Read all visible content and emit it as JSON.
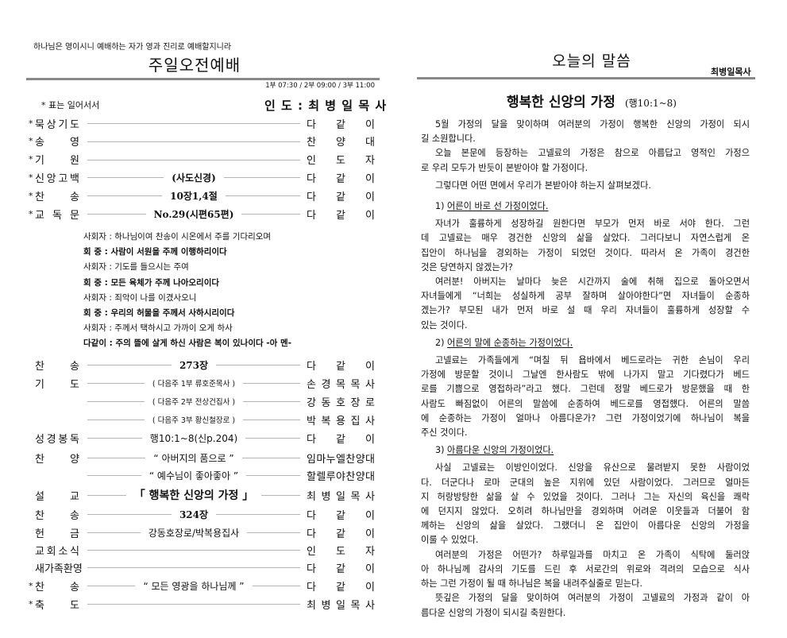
{
  "left": {
    "motto": "하나님은 영이시니 예배하는 자가 영과 진리로 예배할지니라",
    "title": "주일오전예배",
    "times": "1부 07:30  /  2부 09:00  / 3부 11:00",
    "note": "* 표는 일어서서",
    "leader": "인 도 : 최 병 일 목 사",
    "order1": [
      {
        "star": "*",
        "label": "묵상기도",
        "mid": "",
        "who": "다같이"
      },
      {
        "star": "*",
        "label": "송영",
        "mid": "",
        "who": "찬양대"
      },
      {
        "star": "*",
        "label": "기원",
        "mid": "",
        "who": "인도자"
      },
      {
        "star": "*",
        "label": "신앙고백",
        "mid": "(사도신경)",
        "who": "다같이"
      },
      {
        "star": "*",
        "label": "찬송",
        "mid": "10장1,4절",
        "who": "다같이"
      },
      {
        "star": "*",
        "label": "교독문",
        "mid": "No.29(시편65편)",
        "who": "다같이"
      }
    ],
    "responsive": [
      {
        "text": "사회자 : 하나님이여 찬송이 시온에서 주를 기다리오며",
        "bold": false
      },
      {
        "text": "회  중 : 사람이 서원을 주께 이행하리이다",
        "bold": true
      },
      {
        "text": "사회자 : 기도를 들으시는 주여",
        "bold": false
      },
      {
        "text": "회  중 : 모든 육체가 주께 나아오리이다",
        "bold": true
      },
      {
        "text": "사회자 : 죄악이 나를 이겼사오니",
        "bold": false
      },
      {
        "text": "회  중 : 우리의 허물을 주께서 사하시리이다",
        "bold": true
      },
      {
        "text": "사회자 : 주께서 택하시고 가까이 오게 하사",
        "bold": false
      },
      {
        "text": "다같이 : 주의 뜰에 살게 하신 사람은 복이 있나이다    -아  멘-",
        "bold": true
      }
    ],
    "order2": [
      {
        "star": "",
        "label": "찬송",
        "mid": "273장",
        "style": "",
        "who": "다같이"
      },
      {
        "star": "",
        "label": "기도",
        "mid": "( 다음주 1부 류호준목사 )",
        "style": "sm",
        "who": "손경목목사"
      },
      {
        "star": "",
        "label": "",
        "mid": "( 다음주 2부 전상건집사 )",
        "style": "sm",
        "who": "강동호장로"
      },
      {
        "star": "",
        "label": "",
        "mid": "( 다음주 3부 황신철장로 )",
        "style": "sm",
        "who": "박복용집사"
      },
      {
        "star": "",
        "label": "성경봉독",
        "mid": "행10:1~8(신p.204)",
        "style": "plain",
        "who": "다같이"
      },
      {
        "star": "",
        "label": "찬양",
        "mid": "“ 아버지의 품으로 ”",
        "style": "plain",
        "who": "임마누엘찬양대"
      },
      {
        "star": "",
        "label": "",
        "mid": "“ 예수님이 좋아좋아 ”",
        "style": "plain",
        "who": "할렐루야찬양대"
      },
      {
        "star": "",
        "label": "설교",
        "mid": "「 행복한 신앙의 가정 」",
        "style": "big",
        "who": "최병일목사"
      },
      {
        "star": "",
        "label": "찬송",
        "mid": "324장",
        "style": "",
        "who": "다같이"
      },
      {
        "star": "",
        "label": "헌금",
        "mid": "강동호장로/박복용집사",
        "style": "plain",
        "who": "다같이"
      },
      {
        "star": "",
        "label": "교회소식",
        "mid": "",
        "style": "",
        "who": "인도자"
      },
      {
        "star": "",
        "label": "새가족환영",
        "mid": "",
        "style": "",
        "who": "다같이"
      },
      {
        "star": "*",
        "label": "찬송",
        "mid": "“ 모든 영광을 하나님께 ”",
        "style": "plain",
        "who": "다같이"
      },
      {
        "star": "*",
        "label": "축도",
        "mid": "",
        "style": "",
        "who": "최병일목사"
      }
    ]
  },
  "right": {
    "title": "오늘의 말씀",
    "author": "최병일목사",
    "sermon_title": "행복한 신앙의 가정",
    "scripture": "(행10:1~8)",
    "blocks": [
      {
        "lines": [
          "5월 가정의 달을 맞이하며 여러분의 가정이 행복한 신앙의 가정이 되시",
          "길 소원합니다."
        ]
      },
      {
        "lines": [
          "오늘 본문에 등장하는 고넬료의 가정은 참으로 아름답고 영적인 가정으",
          "로 우리 모두가 반듯이 본받아야 할 가정이다."
        ]
      },
      {
        "lines": [
          "그렇다면 어떤 면에서 우리가 본받아야 하는지 살펴보겠다."
        ]
      },
      {
        "num": "1)",
        "head": "어른이 바로 선 가정이었다."
      },
      {
        "lines": [
          "자녀가 훌륭하게 성장하길 원한다면 부모가 먼저 바로 서야 한다. 그런",
          "데 고넬료는 매우 경건한 신앙의 삶을 살았다. 그러다보니 자연스럽게 온",
          "집안이 하나님을 경외하는 가정이 되었던 것이다. 따라서 온 가족이 경건한",
          "것은 당연하지 않겠는가?"
        ]
      },
      {
        "lines": [
          "여러분! 아버지는 날마다 늦은 시간까지 술에 취해 집으로 돌아오면서",
          "자녀들에게 “너희는 성실하게 공부 잘하며 살아야한다”면 자녀들이 순종하",
          "겠는가? 부모된 내가 먼저 바로 설 때 우리 자녀들이 훌륭하게 성장할 수",
          "있는 것이다."
        ]
      },
      {
        "num": "2)",
        "head": "어른의 말에 순종하는 가정이었다."
      },
      {
        "lines": [
          "고넬료는 가족들에게 “며칠 뒤 욥바에서 베드로라는 귀한 손님이 우리",
          "가정에 방문할 것이니 그날엔 한사람도 밖에 나가지 말고 기다렸다가 베드",
          "로를 기쁨으로 영접하라”라고 했다. 그런데 정말 베드로가 방문했을 때 한",
          "사람도 빠짐없이 어른의 말씀에 순종하여 베드로를 영접했다. 어른의 말씀",
          "에 순종하는 가정이 얼마나 아름다운가? 그런 가정이었기에 하나님이 복을",
          "주신 것이다."
        ]
      },
      {
        "num": "3)",
        "head": "아름다운 신앙의 가정이었다."
      },
      {
        "lines": [
          "사실 고넬료는 이방인이었다. 신앙을 유산으로 물려받지 못한 사람이었",
          "다. 더군다나 로마 군대의 높은 지위에 있던 사람이었다. 그러므로 얼마든",
          "지 허랑방탕한 삶을 살 수 있었을 것이다. 그러나 그는 자신의 육신을 쾌락",
          "에 던지지 않았다. 오히려 하나님만을 경외하며 어려운 이웃들과 더불어 함",
          "께하는 신앙의 삶을 살았다. 그랬더니 온 집안이 아름다운 신앙의 가정을",
          "이룰 수 있었다."
        ]
      },
      {
        "lines": [
          "여러분의 가정은 어떤가? 하루일과를 마치고 온 가족이 식탁에 둘러앉",
          "아 하나님께 감사의 기도를 드린 후 서로간의 위로와 격려의 모습으로 식사",
          "하는 그런 가정이 될 때 하나님은 복을 내려주실줄로 믿는다."
        ]
      },
      {
        "lines": [
          "뜻깊은 가정의 달을 맞이하여 여러분의 가정이 고넬료의 가정과 같이 아",
          "름다운 신앙의 가정이 되시길 축원한다."
        ]
      }
    ]
  }
}
